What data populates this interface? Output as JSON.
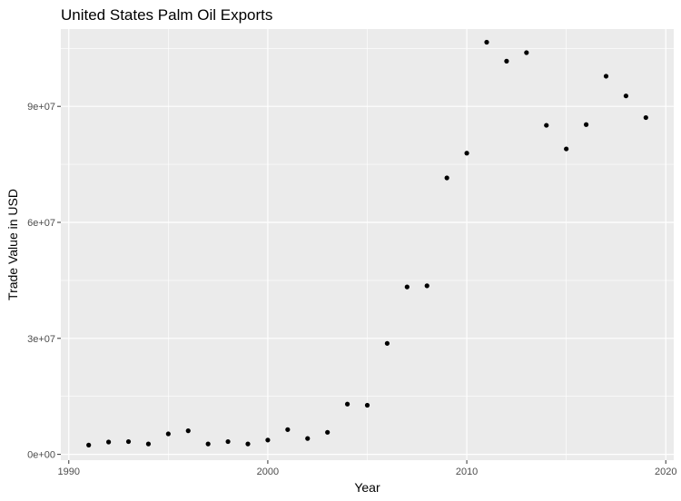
{
  "chart_data": {
    "type": "scatter",
    "title": "United States Palm Oil Exports",
    "xlabel": "Year",
    "ylabel": "Trade Value in USD",
    "xlim": [
      1989.6,
      2020.4
    ],
    "ylim": [
      -1500000,
      110000000
    ],
    "x_ticks": [
      1990,
      2000,
      2010,
      2020
    ],
    "x_tick_labels": [
      "1990",
      "2000",
      "2010",
      "2020"
    ],
    "y_ticks": [
      0,
      30000000,
      60000000,
      90000000
    ],
    "y_tick_labels": [
      "0e+00",
      "3e+07",
      "6e+07",
      "9e+07"
    ],
    "grid": true,
    "panel_background": "#ebebeb",
    "grid_color": "#ffffff",
    "point_color": "#000000",
    "points": [
      {
        "x": 1991,
        "y": 2400000
      },
      {
        "x": 1992,
        "y": 3200000
      },
      {
        "x": 1993,
        "y": 3300000
      },
      {
        "x": 1994,
        "y": 2700000
      },
      {
        "x": 1995,
        "y": 5300000
      },
      {
        "x": 1996,
        "y": 6100000
      },
      {
        "x": 1997,
        "y": 2700000
      },
      {
        "x": 1998,
        "y": 3300000
      },
      {
        "x": 1999,
        "y": 2700000
      },
      {
        "x": 2000,
        "y": 3700000
      },
      {
        "x": 2001,
        "y": 6400000
      },
      {
        "x": 2002,
        "y": 4100000
      },
      {
        "x": 2003,
        "y": 5700000
      },
      {
        "x": 2004,
        "y": 13000000
      },
      {
        "x": 2005,
        "y": 12700000
      },
      {
        "x": 2006,
        "y": 28700000
      },
      {
        "x": 2007,
        "y": 43300000
      },
      {
        "x": 2008,
        "y": 43600000
      },
      {
        "x": 2009,
        "y": 71500000
      },
      {
        "x": 2010,
        "y": 77900000
      },
      {
        "x": 2011,
        "y": 106600000
      },
      {
        "x": 2012,
        "y": 101700000
      },
      {
        "x": 2013,
        "y": 103900000
      },
      {
        "x": 2014,
        "y": 85100000
      },
      {
        "x": 2015,
        "y": 79000000
      },
      {
        "x": 2016,
        "y": 85300000
      },
      {
        "x": 2017,
        "y": 97800000
      },
      {
        "x": 2018,
        "y": 92700000
      },
      {
        "x": 2019,
        "y": 87100000
      }
    ]
  }
}
